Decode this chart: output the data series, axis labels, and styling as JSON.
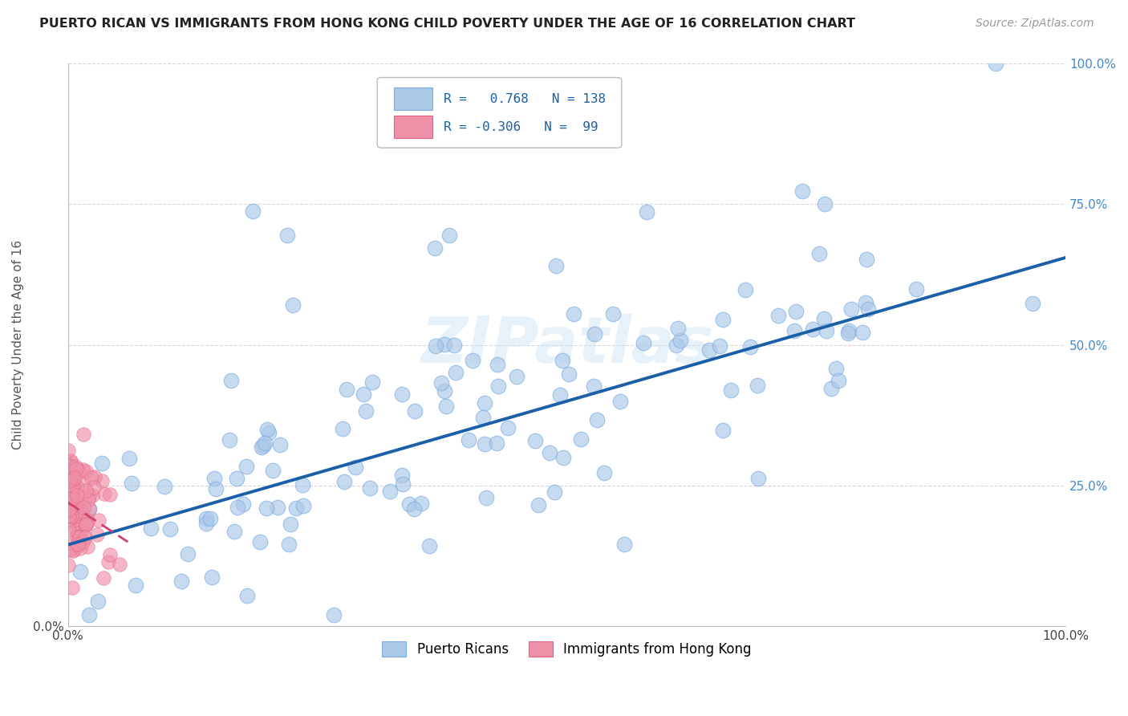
{
  "title": "PUERTO RICAN VS IMMIGRANTS FROM HONG KONG CHILD POVERTY UNDER THE AGE OF 16 CORRELATION CHART",
  "source": "Source: ZipAtlas.com",
  "ylabel": "Child Poverty Under the Age of 16",
  "xlim": [
    0,
    1.0
  ],
  "ylim": [
    0,
    1.0
  ],
  "puerto_rican_color": "#aac8e8",
  "puerto_rican_edge": "#7aabe0",
  "hong_kong_color": "#f090a8",
  "hong_kong_edge": "#e06080",
  "trend_blue": "#1a5fa8",
  "trend_pink": "#d04070",
  "legend_R_blue": "0.768",
  "legend_N_blue": "138",
  "legend_R_pink": "-0.306",
  "legend_N_pink": "99",
  "watermark": "ZIPatlas",
  "background_color": "#ffffff",
  "grid_color": "#cccccc",
  "right_tick_color": "#4488cc",
  "trend_blue_x0": 0.0,
  "trend_blue_y0": 0.145,
  "trend_blue_x1": 1.0,
  "trend_blue_y1": 0.655,
  "trend_pink_x0": 0.0,
  "trend_pink_y0": 0.22,
  "trend_pink_x1": 0.06,
  "trend_pink_y1": 0.15
}
